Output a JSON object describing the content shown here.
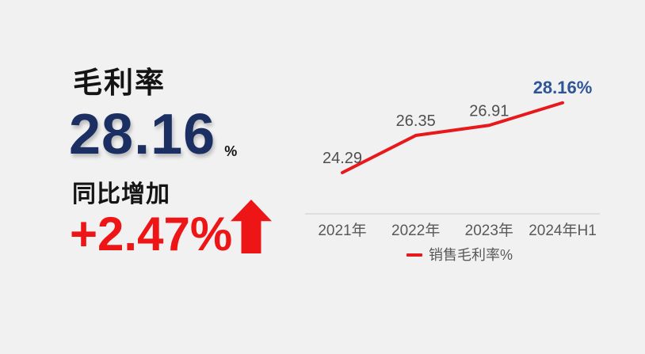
{
  "colors": {
    "background": "#f1f1f2",
    "text_dark": "#141414",
    "navy": "#1b2f63",
    "red": "#ed1515",
    "chart_line": "#e8191c",
    "chart_highlight": "#2e5597",
    "chart_label": "#4f4f4f",
    "axis_label": "#595959",
    "axis_line": "#d8d8d8"
  },
  "left_panel": {
    "title": "毛利率",
    "value": "28.16",
    "unit": "%",
    "change_label": "同比增加",
    "change_value": "+2.47%",
    "trend_icon": "up-arrow"
  },
  "chart_data": {
    "type": "line",
    "title": "",
    "categories": [
      "2021年",
      "2022年",
      "2023年",
      "2024年H1"
    ],
    "series": [
      {
        "name": "销售毛利率%",
        "values": [
          24.29,
          26.35,
          26.91,
          28.16
        ]
      }
    ],
    "point_labels": [
      "24.29",
      "26.35",
      "26.91",
      "28.16%"
    ],
    "highlight_index": 3,
    "legend": {
      "label": "销售毛利率%",
      "position": "bottom"
    },
    "xlabel": "",
    "ylabel": "",
    "ylim": [
      23,
      29
    ],
    "grid": false
  }
}
